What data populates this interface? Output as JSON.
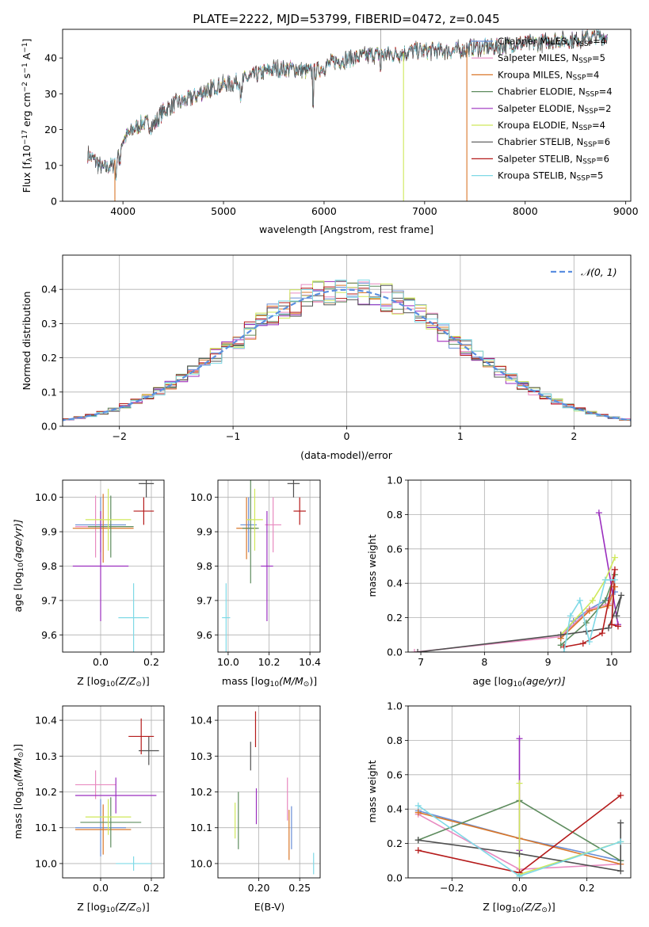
{
  "colors": {
    "ChabrierMILES": "#6a8fd6",
    "SalpeterMILES": "#e88ac0",
    "KroupaMILES": "#d9772a",
    "ChabrierELODIE": "#5e8c5e",
    "SalpeterELODIE": "#9b2fbf",
    "KroupaELODIE": "#cfe85a",
    "ChabrierSTELIB": "#505050",
    "SalpeterSTELIB": "#b51b1b",
    "KroupaSTELIB": "#7fd9e6",
    "gauss": "#5b8ee0"
  },
  "chart_data": [
    {
      "id": "spectrum",
      "type": "line",
      "title": "PLATE=2222, MJD=53799, FIBERID=0472, z=0.045",
      "xlabel": "wavelength [Angstrom, rest frame]",
      "ylabel_main": "Flux [f",
      "ylabel_sub": "λ",
      "ylabel_rest": "10",
      "ylabel_exp": "−17",
      "ylabel_unit": " erg cm",
      "ylabel_exp2": "−2",
      "ylabel_unit2": " s",
      "ylabel_exp3": "−1",
      "ylabel_unit3": " A",
      "ylabel_exp4": "−1",
      "ylabel_close": "]",
      "xlim": [
        3400,
        9050
      ],
      "ylim": [
        0,
        48
      ],
      "xticks": [
        "4000",
        "5000",
        "6000",
        "7000",
        "8000",
        "9000"
      ],
      "yticks": [
        "0",
        "10",
        "20",
        "30",
        "40"
      ],
      "continuum_x": [
        3650,
        3700,
        3800,
        3900,
        3950,
        4000,
        4100,
        4200,
        4300,
        4400,
        4500,
        4700,
        4900,
        5100,
        5300,
        5500,
        5700,
        5900,
        6100,
        6300,
        6500,
        6700,
        6900,
        7100,
        7300,
        7500,
        7700,
        7900,
        8100,
        8300,
        8500,
        8700,
        8800
      ],
      "continuum_y": [
        13,
        12,
        9,
        10,
        14,
        17,
        20,
        22,
        21,
        25,
        27,
        29,
        32,
        33,
        35,
        37,
        37,
        36,
        39,
        40,
        41,
        41,
        42,
        42,
        42,
        43,
        43,
        44,
        44,
        45,
        45,
        46,
        46
      ],
      "legend": [
        {
          "pre": "Chabrier MILES, N",
          "sub": "SSP",
          "post": "=4",
          "color": "ChabrierMILES"
        },
        {
          "pre": "Salpeter MILES, N",
          "sub": "SSP",
          "post": "=5",
          "color": "SalpeterMILES"
        },
        {
          "pre": "Kroupa MILES, N",
          "sub": "SSP",
          "post": "=4",
          "color": "KroupaMILES"
        },
        {
          "pre": "Chabrier ELODIE, N",
          "sub": "SSP",
          "post": "=4",
          "color": "ChabrierELODIE"
        },
        {
          "pre": "Salpeter ELODIE, N",
          "sub": "SSP",
          "post": "=2",
          "color": "SalpeterELODIE"
        },
        {
          "pre": "Kroupa ELODIE, N",
          "sub": "SSP",
          "post": "=4",
          "color": "KroupaELODIE"
        },
        {
          "pre": "Chabrier STELIB, N",
          "sub": "SSP",
          "post": "=6",
          "color": "ChabrierSTELIB"
        },
        {
          "pre": "Salpeter STELIB, N",
          "sub": "SSP",
          "post": "=6",
          "color": "SalpeterSTELIB"
        },
        {
          "pre": "Kroupa STELIB, N",
          "sub": "SSP",
          "post": "=5",
          "color": "KroupaSTELIB"
        }
      ],
      "drops": [
        {
          "x": 3920,
          "color": "KroupaMILES"
        },
        {
          "x": 6790,
          "color": "KroupaELODIE"
        },
        {
          "x": 7420,
          "color": "KroupaMILES"
        }
      ]
    },
    {
      "id": "residuals",
      "type": "line",
      "xlabel": "(data-model)/error",
      "ylabel": "Normed distribution",
      "xlim": [
        -2.5,
        2.5
      ],
      "ylim": [
        0,
        0.5
      ],
      "xticks": [
        "−2",
        "−1",
        "0",
        "1",
        "2"
      ],
      "yticks": [
        "0.0",
        "0.1",
        "0.2",
        "0.3",
        "0.4"
      ],
      "legend": "𝒩(0, 1)",
      "bin_width": 0.1
    },
    {
      "id": "z-age",
      "type": "scatter",
      "xlabel": "Z [log",
      "xlabel_sub": "10",
      "xlabel_rest": "(Z/Z",
      "xlabel_sun": "⊙",
      "xlabel_close": ")]",
      "ylabel": "age  [log",
      "ylabel_sub": "10",
      "ylabel_rest": "(age/yr)]",
      "xlim": [
        -0.15,
        0.25
      ],
      "ylim": [
        9.55,
        10.05
      ],
      "xticks": [
        "0.0",
        "0.2"
      ],
      "xtick_values": [
        0,
        0.2
      ],
      "yticks": [
        "9.6",
        "9.7",
        "9.8",
        "9.9",
        "10.0"
      ],
      "ytick_values": [
        9.6,
        9.7,
        9.8,
        9.9,
        10.0
      ],
      "points": [
        {
          "m": "ChabrierMILES",
          "x": 0.0,
          "y": 9.92,
          "xe": 0.1,
          "ye": 0.08
        },
        {
          "m": "SalpeterMILES",
          "x": -0.02,
          "y": 9.915,
          "xe": 0.08,
          "ye": 0.09
        },
        {
          "m": "KroupaMILES",
          "x": 0.01,
          "y": 9.91,
          "xe": 0.12,
          "ye": 0.1
        },
        {
          "m": "ChabrierELODIE",
          "x": 0.04,
          "y": 9.915,
          "xe": 0.09,
          "ye": 0.09
        },
        {
          "m": "SalpeterELODIE",
          "x": 0.0,
          "y": 9.8,
          "xe": 0.11,
          "ye": 0.16
        },
        {
          "m": "KroupaELODIE",
          "x": 0.03,
          "y": 9.935,
          "xe": 0.09,
          "ye": 0.09
        },
        {
          "m": "ChabrierSTELIB",
          "x": 0.18,
          "y": 10.04,
          "xe": 0.03,
          "ye": 0.04
        },
        {
          "m": "SalpeterSTELIB",
          "x": 0.17,
          "y": 9.96,
          "xe": 0.04,
          "ye": 0.04
        },
        {
          "m": "KroupaSTELIB",
          "x": 0.13,
          "y": 9.65,
          "xe": 0.06,
          "ye": 0.1
        }
      ]
    },
    {
      "id": "mass-age",
      "type": "scatter",
      "xlabel": "mass [log",
      "xlabel_sub": "10",
      "xlabel_rest": "(M/M",
      "xlabel_sun": "⊙",
      "xlabel_close": ")]",
      "xlim": [
        9.95,
        10.45
      ],
      "ylim": [
        9.55,
        10.05
      ],
      "xticks": [
        "10.0",
        "10.2",
        "10.4"
      ],
      "xtick_values": [
        10.0,
        10.2,
        10.4
      ],
      "yticks": [
        "9.6",
        "9.7",
        "9.8",
        "9.9",
        "10.0"
      ],
      "ytick_values": [
        9.6,
        9.7,
        9.8,
        9.9,
        10.0
      ],
      "points": [
        {
          "m": "ChabrierMILES",
          "x": 10.1,
          "y": 9.92,
          "xe": 0.04,
          "ye": 0.08
        },
        {
          "m": "SalpeterMILES",
          "x": 10.22,
          "y": 9.92,
          "xe": 0.04,
          "ye": 0.08
        },
        {
          "m": "KroupaMILES",
          "x": 10.09,
          "y": 9.91,
          "xe": 0.05,
          "ye": 0.09
        },
        {
          "m": "ChabrierELODIE",
          "x": 10.11,
          "y": 9.91,
          "xe": 0.04,
          "ye": 0.16
        },
        {
          "m": "SalpeterELODIE",
          "x": 10.19,
          "y": 9.8,
          "xe": 0.03,
          "ye": 0.16
        },
        {
          "m": "KroupaELODIE",
          "x": 10.13,
          "y": 9.935,
          "xe": 0.04,
          "ye": 0.09
        },
        {
          "m": "ChabrierSTELIB",
          "x": 10.32,
          "y": 10.04,
          "xe": 0.03,
          "ye": 0.04
        },
        {
          "m": "SalpeterSTELIB",
          "x": 10.35,
          "y": 9.96,
          "xe": 0.03,
          "ye": 0.04
        },
        {
          "m": "KroupaSTELIB",
          "x": 9.99,
          "y": 9.65,
          "xe": 0.02,
          "ye": 0.1
        }
      ]
    },
    {
      "id": "age-weight",
      "type": "line",
      "xlabel": "age  [log",
      "xlabel_sub": "10",
      "xlabel_rest": "(age/yr)]",
      "ylabel": "mass weight",
      "xlim": [
        6.8,
        10.3
      ],
      "ylim": [
        0,
        1.0
      ],
      "xticks": [
        "7",
        "8",
        "9",
        "10"
      ],
      "xtick_values": [
        7,
        8,
        9,
        10
      ],
      "yticks": [
        "0.0",
        "0.2",
        "0.4",
        "0.6",
        "0.8",
        "1.0"
      ],
      "ytick_values": [
        0,
        0.2,
        0.4,
        0.6,
        0.8,
        1.0
      ],
      "series": [
        {
          "m": "ChabrierMILES",
          "x": [
            9.2,
            9.4,
            9.65,
            9.9,
            10.05
          ],
          "y": [
            0.08,
            0.18,
            0.25,
            0.3,
            0.35
          ]
        },
        {
          "m": "SalpeterMILES",
          "x": [
            6.9,
            9.2,
            9.65,
            9.95,
            10.05
          ],
          "y": [
            0.0,
            0.09,
            0.25,
            0.28,
            0.38
          ]
        },
        {
          "m": "KroupaMILES",
          "x": [
            9.2,
            9.65,
            9.95,
            10.05
          ],
          "y": [
            0.08,
            0.24,
            0.27,
            0.38
          ]
        },
        {
          "m": "ChabrierELODIE",
          "x": [
            9.2,
            9.6,
            9.9,
            10.05
          ],
          "y": [
            0.04,
            0.17,
            0.3,
            0.45
          ]
        },
        {
          "m": "SalpeterELODIE",
          "x": [
            9.8,
            10.1
          ],
          "y": [
            0.81,
            0.16
          ]
        },
        {
          "m": "KroupaELODIE",
          "x": [
            9.2,
            9.7,
            9.9,
            10.05
          ],
          "y": [
            0.1,
            0.3,
            0.42,
            0.55
          ]
        },
        {
          "m": "ChabrierSTELIB",
          "x": [
            6.95,
            9.2,
            9.6,
            9.95,
            10.15,
            10.08
          ],
          "y": [
            0.0,
            0.1,
            0.12,
            0.14,
            0.33,
            0.21
          ]
        },
        {
          "m": "SalpeterSTELIB",
          "x": [
            9.25,
            9.55,
            9.85,
            10.05,
            10.0,
            10.1
          ],
          "y": [
            0.03,
            0.05,
            0.11,
            0.48,
            0.16,
            0.15
          ]
        },
        {
          "m": "KroupaSTELIB",
          "x": [
            9.25,
            9.35,
            9.5,
            9.65,
            9.9,
            10.05
          ],
          "y": [
            0.0,
            0.21,
            0.3,
            0.06,
            0.42,
            0.42
          ]
        }
      ]
    },
    {
      "id": "z-mass",
      "type": "scatter",
      "xlabel": "Z [log",
      "xlabel_sub": "10",
      "xlabel_rest": "(Z/Z",
      "xlabel_sun": "⊙",
      "xlabel_close": ")]",
      "ylabel": "mass [log",
      "ylabel_sub": "10",
      "ylabel_rest": "(M/M",
      "ylabel_sun": "⊙",
      "ylabel_close": ")]",
      "xlim": [
        -0.15,
        0.25
      ],
      "ylim": [
        9.96,
        10.44
      ],
      "xticks": [
        "0.0",
        "0.2"
      ],
      "xtick_values": [
        0,
        0.2
      ],
      "yticks": [
        "10.0",
        "10.1",
        "10.2",
        "10.3",
        "10.4"
      ],
      "ytick_values": [
        10.0,
        10.1,
        10.2,
        10.3,
        10.4
      ],
      "points": [
        {
          "m": "ChabrierMILES",
          "x": 0.0,
          "y": 10.1,
          "xe": 0.1,
          "ye": 0.08
        },
        {
          "m": "SalpeterMILES",
          "x": -0.02,
          "y": 10.22,
          "xe": 0.08,
          "ye": 0.04
        },
        {
          "m": "KroupaMILES",
          "x": 0.01,
          "y": 10.095,
          "xe": 0.11,
          "ye": 0.07
        },
        {
          "m": "ChabrierELODIE",
          "x": 0.04,
          "y": 10.115,
          "xe": 0.12,
          "ye": 0.07
        },
        {
          "m": "SalpeterELODIE",
          "x": 0.06,
          "y": 10.19,
          "xe": 0.16,
          "ye": 0.05
        },
        {
          "m": "KroupaELODIE",
          "x": 0.03,
          "y": 10.13,
          "xe": 0.09,
          "ye": 0.05
        },
        {
          "m": "ChabrierSTELIB",
          "x": 0.19,
          "y": 10.315,
          "xe": 0.04,
          "ye": 0.04
        },
        {
          "m": "SalpeterSTELIB",
          "x": 0.16,
          "y": 10.355,
          "xe": 0.05,
          "ye": 0.05
        },
        {
          "m": "KroupaSTELIB",
          "x": 0.13,
          "y": 10.0,
          "xe": 0.07,
          "ye": 0.02
        }
      ]
    },
    {
      "id": "ebv-mass",
      "type": "scatter",
      "xlabel": "E(B-V)",
      "xlim": [
        0.15,
        0.275
      ],
      "ylim": [
        9.96,
        10.44
      ],
      "xticks": [
        "0.20",
        "0.25"
      ],
      "xtick_values": [
        0.2,
        0.25
      ],
      "yticks": [
        "10.0",
        "10.1",
        "10.2",
        "10.3",
        "10.4"
      ],
      "ytick_values": [
        10.0,
        10.1,
        10.2,
        10.3,
        10.4
      ],
      "points": [
        {
          "m": "ChabrierMILES",
          "x": 0.24,
          "y": 10.1,
          "xe": 0,
          "ye": 0.06
        },
        {
          "m": "SalpeterMILES",
          "x": 0.235,
          "y": 10.18,
          "xe": 0,
          "ye": 0.06
        },
        {
          "m": "KroupaMILES",
          "x": 0.237,
          "y": 10.08,
          "xe": 0,
          "ye": 0.07
        },
        {
          "m": "ChabrierELODIE",
          "x": 0.175,
          "y": 10.12,
          "xe": 0,
          "ye": 0.08
        },
        {
          "m": "SalpeterELODIE",
          "x": 0.197,
          "y": 10.16,
          "xe": 0,
          "ye": 0.05
        },
        {
          "m": "KroupaELODIE",
          "x": 0.171,
          "y": 10.12,
          "xe": 0,
          "ye": 0.05
        },
        {
          "m": "ChabrierSTELIB",
          "x": 0.19,
          "y": 10.3,
          "xe": 0,
          "ye": 0.04
        },
        {
          "m": "SalpeterSTELIB",
          "x": 0.196,
          "y": 10.375,
          "xe": 0,
          "ye": 0.05
        },
        {
          "m": "KroupaSTELIB",
          "x": 0.267,
          "y": 10.0,
          "xe": 0,
          "ye": 0.03
        }
      ]
    },
    {
      "id": "z-weight",
      "type": "line",
      "xlabel": "Z [log",
      "xlabel_sub": "10",
      "xlabel_rest": "(Z/Z",
      "xlabel_sun": "⊙",
      "xlabel_close": ")]",
      "ylabel": "mass weight",
      "xlim": [
        -0.33,
        0.33
      ],
      "ylim": [
        0,
        1.0
      ],
      "xticks": [
        "−0.2",
        "0.0",
        "0.2"
      ],
      "xtick_values": [
        -0.2,
        0,
        0.2
      ],
      "yticks": [
        "0.0",
        "0.2",
        "0.4",
        "0.6",
        "0.8",
        "1.0"
      ],
      "ytick_values": [
        0,
        0.2,
        0.4,
        0.6,
        0.8,
        1.0
      ],
      "series": [
        {
          "m": "ChabrierMILES",
          "x": [
            -0.3,
            0.0,
            0.3
          ],
          "y": [
            0.39,
            0.23,
            0.1
          ]
        },
        {
          "m": "SalpeterMILES",
          "x": [
            -0.3,
            0.0,
            0.3
          ],
          "y": [
            0.37,
            0.05,
            0.08
          ]
        },
        {
          "m": "KroupaMILES",
          "x": [
            -0.3,
            0.0,
            0.3
          ],
          "y": [
            0.38,
            0.23,
            0.08
          ]
        },
        {
          "m": "ChabrierELODIE",
          "x": [
            -0.3,
            0.0,
            0.3
          ],
          "y": [
            0.22,
            0.45,
            0.1
          ]
        },
        {
          "m": "SalpeterELODIE",
          "x": [
            0.0,
            0.0
          ],
          "y": [
            0.81,
            0.16
          ]
        },
        {
          "m": "KroupaELODIE",
          "x": [
            0.0,
            0.0,
            0.3
          ],
          "y": [
            0.55,
            0.02,
            0.21
          ]
        },
        {
          "m": "ChabrierSTELIB",
          "x": [
            -0.3,
            0.0,
            0.3,
            0.3
          ],
          "y": [
            0.22,
            0.14,
            0.04,
            0.32
          ]
        },
        {
          "m": "SalpeterSTELIB",
          "x": [
            -0.3,
            0.0,
            0.3
          ],
          "y": [
            0.16,
            0.03,
            0.48
          ]
        },
        {
          "m": "KroupaSTELIB",
          "x": [
            -0.3,
            0.0,
            0.3
          ],
          "y": [
            0.42,
            0.01,
            0.21
          ]
        }
      ]
    }
  ]
}
